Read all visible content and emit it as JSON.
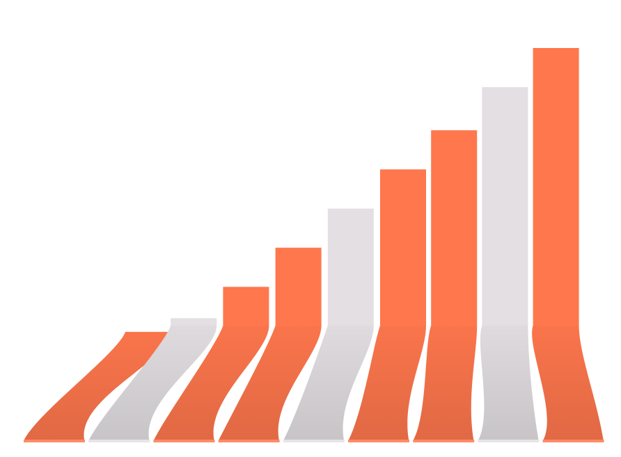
{
  "chart_data": {
    "type": "bar",
    "categories": [
      null,
      null,
      null,
      null,
      null,
      null,
      null,
      null,
      null
    ],
    "values": [
      27.5,
      31,
      39,
      49,
      59,
      69,
      79,
      90,
      100
    ],
    "colors": [
      "#ff774d",
      "#e3dfe2",
      "#ff774d",
      "#ff774d",
      "#e3dfe2",
      "#ff774d",
      "#ff774d",
      "#e3dfe2",
      "#ff774d"
    ],
    "ylim": [
      0,
      100
    ]
  }
}
